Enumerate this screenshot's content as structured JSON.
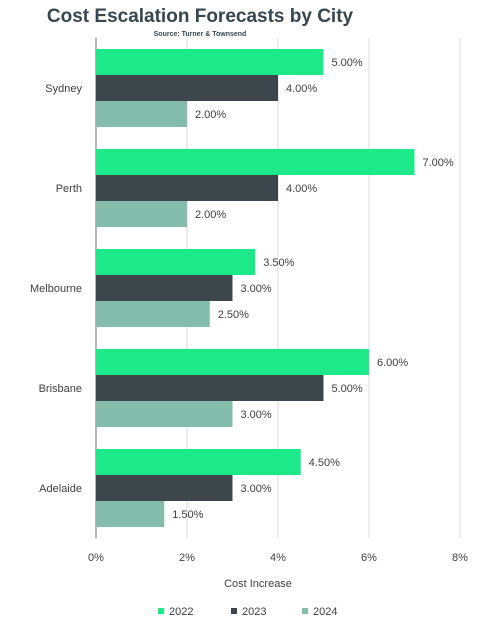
{
  "chart_data": {
    "type": "bar",
    "orientation": "horizontal",
    "title": "Cost Escalation Forecasts by City",
    "subtitle": "Source: Turner & Townsend",
    "xlabel": "Cost Increase",
    "ylabel": "",
    "xlim": [
      0,
      8
    ],
    "x_ticks": [
      "0%",
      "2%",
      "4%",
      "6%",
      "8%"
    ],
    "categories": [
      "Sydney",
      "Perth",
      "Melbourne",
      "Brisbane",
      "Adelaide"
    ],
    "series": [
      {
        "name": "2022",
        "color": "#1de88a",
        "values": [
          5.0,
          7.0,
          3.5,
          6.0,
          4.5
        ],
        "labels": [
          "5.00%",
          "7.00%",
          "3.50%",
          "6.00%",
          "4.50%"
        ]
      },
      {
        "name": "2023",
        "color": "#3d474b",
        "values": [
          4.0,
          4.0,
          3.0,
          5.0,
          3.0
        ],
        "labels": [
          "4.00%",
          "4.00%",
          "3.00%",
          "5.00%",
          "3.00%"
        ]
      },
      {
        "name": "2024",
        "color": "#84bcac",
        "values": [
          2.0,
          2.0,
          2.5,
          3.0,
          1.5
        ],
        "labels": [
          "2.00%",
          "2.00%",
          "2.50%",
          "3.00%",
          "1.50%"
        ]
      }
    ],
    "grid": true,
    "legend_position": "bottom"
  }
}
